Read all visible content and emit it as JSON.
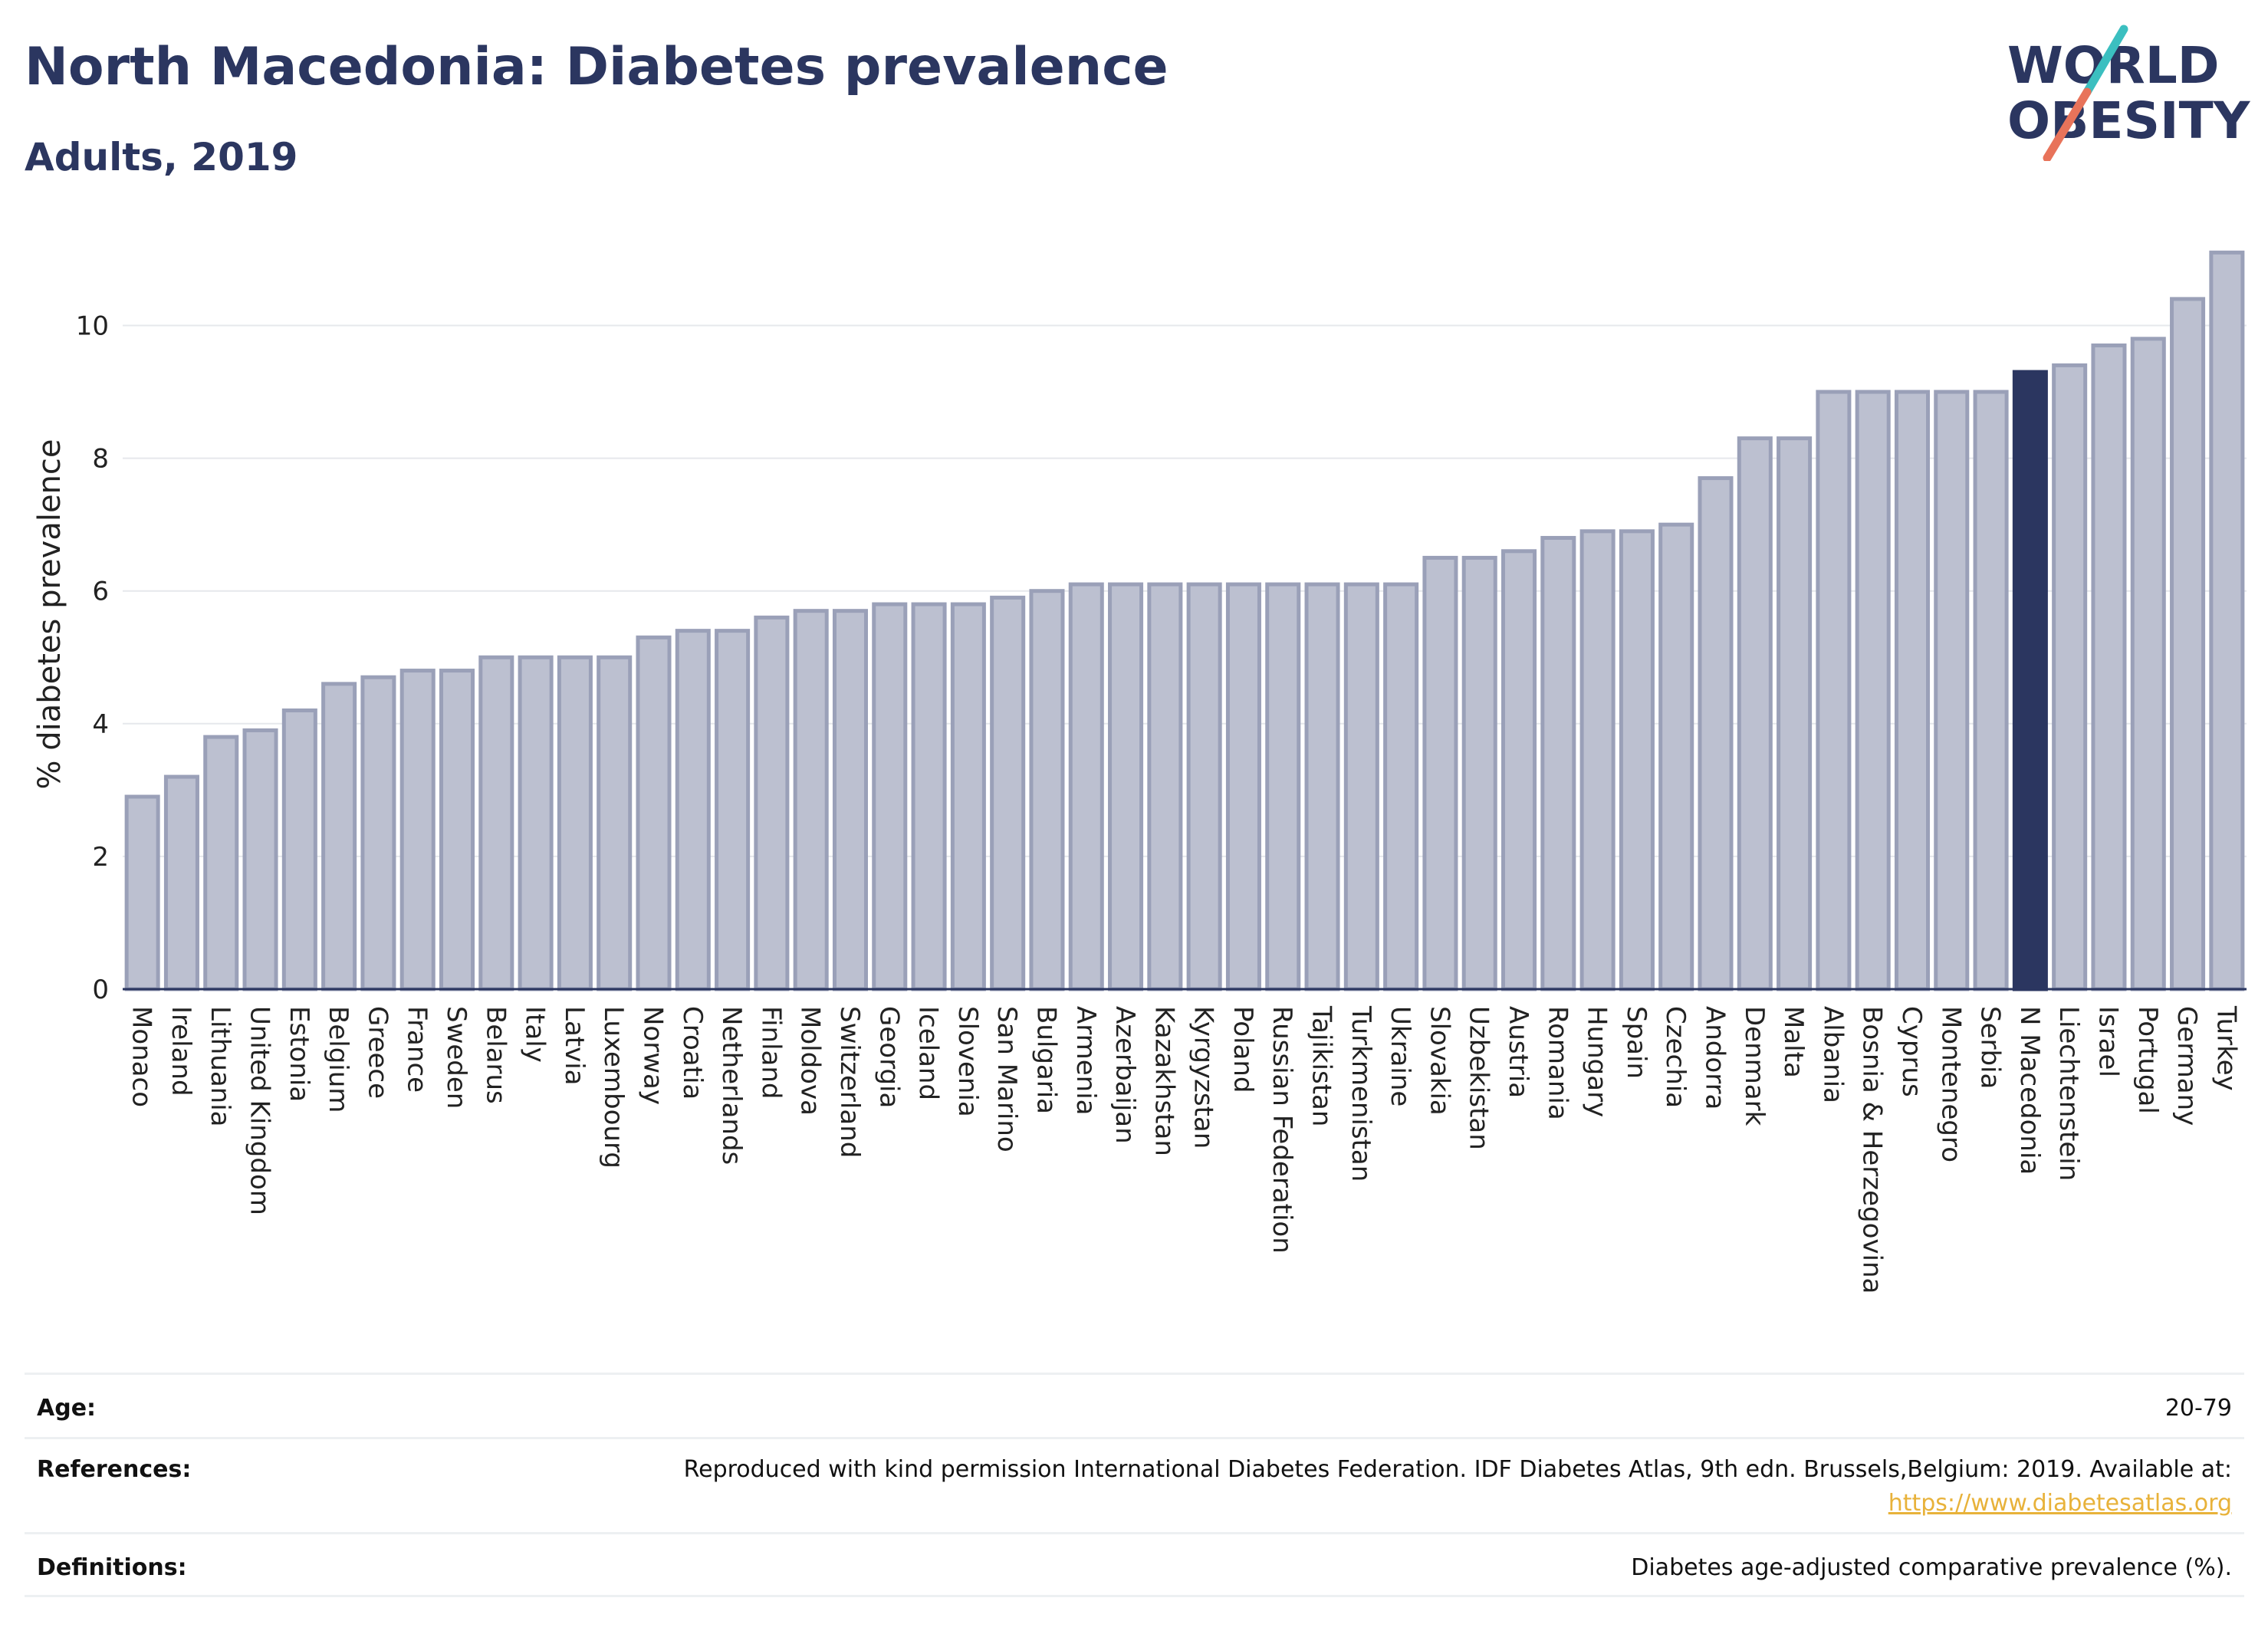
{
  "header": {
    "title": "North Macedonia: Diabetes prevalence",
    "subtitle": "Adults, 2019"
  },
  "logo": {
    "line1": "WORLD",
    "line2": "OBESITY"
  },
  "colors": {
    "bar_fill": "#bcc0d0",
    "bar_stroke": "#9aa0b8",
    "highlight": "#2b3660",
    "title": "#2b3660",
    "logo_teal": "#3bbfc0",
    "logo_coral": "#e8735a",
    "link": "#e8b23a"
  },
  "chart_data": {
    "type": "bar",
    "title": "North Macedonia: Diabetes prevalence",
    "subtitle": "Adults, 2019",
    "ylabel": "% diabetes prevalence",
    "xlabel": "",
    "ylim": [
      0,
      11.3
    ],
    "yticks": [
      0,
      2,
      4,
      6,
      8,
      10
    ],
    "grid": true,
    "highlight": "N Macedonia",
    "categories": [
      "Monaco",
      "Ireland",
      "Lithuania",
      "United Kingdom",
      "Estonia",
      "Belgium",
      "Greece",
      "France",
      "Sweden",
      "Belarus",
      "Italy",
      "Latvia",
      "Luxembourg",
      "Norway",
      "Croatia",
      "Netherlands",
      "Finland",
      "Moldova",
      "Switzerland",
      "Georgia",
      "Iceland",
      "Slovenia",
      "San Marino",
      "Bulgaria",
      "Armenia",
      "Azerbaijan",
      "Kazakhstan",
      "Kyrgyzstan",
      "Poland",
      "Russian Federation",
      "Tajikistan",
      "Turkmenistan",
      "Ukraine",
      "Slovakia",
      "Uzbekistan",
      "Austria",
      "Romania",
      "Hungary",
      "Spain",
      "Czechia",
      "Andorra",
      "Denmark",
      "Malta",
      "Albania",
      "Bosnia & Herzegovina",
      "Cyprus",
      "Montenegro",
      "Serbia",
      "N Macedonia",
      "Liechtenstein",
      "Israel",
      "Portugal",
      "Germany",
      "Turkey"
    ],
    "values": [
      2.9,
      3.2,
      3.8,
      3.9,
      4.2,
      4.6,
      4.7,
      4.8,
      4.8,
      5.0,
      5.0,
      5.0,
      5.0,
      5.3,
      5.4,
      5.4,
      5.6,
      5.7,
      5.7,
      5.8,
      5.8,
      5.8,
      5.9,
      6.0,
      6.1,
      6.1,
      6.1,
      6.1,
      6.1,
      6.1,
      6.1,
      6.1,
      6.1,
      6.5,
      6.5,
      6.6,
      6.8,
      6.9,
      6.9,
      7.0,
      7.7,
      8.3,
      8.3,
      9.0,
      9.0,
      9.0,
      9.0,
      9.0,
      9.3,
      9.4,
      9.7,
      9.8,
      10.4,
      11.1
    ]
  },
  "meta": {
    "age_label": "Age:",
    "age_value": "20-79",
    "references_label": "References:",
    "references_value": "Reproduced with kind permission International Diabetes Federation. IDF Diabetes Atlas, 9th edn. Brussels,Belgium: 2019. Available at:",
    "references_link": "https://www.diabetesatlas.org",
    "definitions_label": "Definitions:",
    "definitions_value": "Diabetes age-adjusted comparative prevalence (%)."
  }
}
